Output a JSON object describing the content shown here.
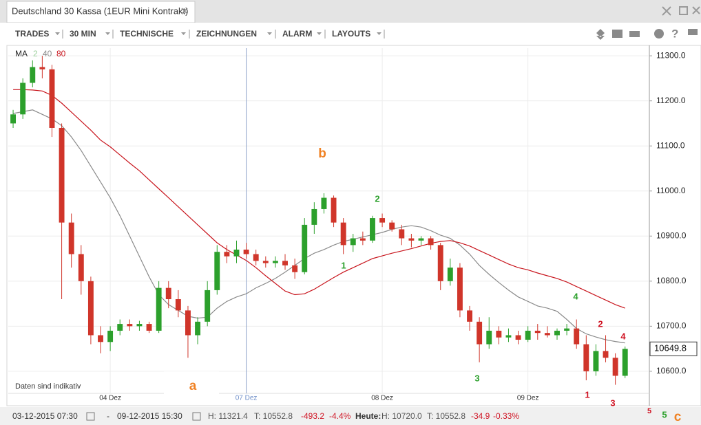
{
  "window": {
    "title": "Deutschland 30 Kassa (1EUR Mini Kontrakt)"
  },
  "toolbar": {
    "items": [
      "TRADES",
      "30 MIN",
      "TECHNISCHE",
      "ZEICHNUNGEN",
      "ALARM",
      "LAYOUTS"
    ]
  },
  "status": {
    "start": "03-12-2015 07:30",
    "dash": "-",
    "end": "09-12-2015 15:30",
    "high": "H: 11321.4",
    "low": "T: 10552.8",
    "change": "-493.2",
    "change_pct": "-4.4%",
    "today": "Heute:",
    "today_high": "H: 10720.0",
    "today_low": "T: 10552.8",
    "today_change": "-34.9",
    "today_change_pct": "-0.33%"
  },
  "chart_data": {
    "type": "candlestick",
    "categories": [
      null,
      null,
      null,
      null,
      null,
      null,
      null,
      null,
      null,
      null,
      "04 Dez",
      null,
      null,
      null,
      null,
      null,
      null,
      null,
      null,
      null,
      null,
      null,
      null,
      null,
      "07 Dez",
      null,
      null,
      null,
      null,
      null,
      null,
      null,
      null,
      null,
      null,
      null,
      null,
      null,
      "08 Dez",
      null,
      null,
      null,
      null,
      null,
      null,
      null,
      null,
      null,
      null,
      null,
      null,
      null,
      null,
      "09 Dez",
      null,
      null,
      null,
      null,
      null,
      null,
      null,
      null,
      null,
      null,
      null,
      null
    ],
    "open": [
      11150,
      11170,
      11240,
      11275,
      11270,
      11140,
      10930,
      10860,
      10800,
      10680,
      10665,
      10690,
      10705,
      10700,
      10705,
      10690,
      10785,
      10760,
      10735,
      10680,
      10710,
      10780,
      10865,
      10855,
      10870,
      10860,
      10845,
      10840,
      10845,
      10835,
      10820,
      10925,
      10960,
      10985,
      10930,
      10880,
      10895,
      10890,
      10940,
      10930,
      10915,
      10895,
      10890,
      10895,
      10880,
      10800,
      10830,
      10735,
      10710,
      10660,
      10690,
      10675,
      10680,
      10670,
      10690,
      10685,
      10680,
      10690,
      10695,
      10660,
      10600,
      10645,
      10630,
      10590,
      null,
      null
    ],
    "high": [
      11180,
      11250,
      11290,
      11300,
      11280,
      11150,
      10950,
      10880,
      10810,
      10700,
      10700,
      10715,
      10715,
      10712,
      10710,
      10800,
      10800,
      10780,
      10745,
      10720,
      10800,
      10880,
      10880,
      10890,
      10885,
      10870,
      10855,
      10855,
      10860,
      10850,
      10940,
      10975,
      10995,
      10990,
      10940,
      10905,
      10910,
      10945,
      10950,
      10935,
      10925,
      10905,
      10900,
      10900,
      10885,
      10850,
      10840,
      10745,
      10720,
      10720,
      10700,
      10695,
      10690,
      10700,
      10705,
      10700,
      10695,
      10705,
      10715,
      10680,
      10660,
      10680,
      10640,
      10655,
      null,
      null
    ],
    "low": [
      11140,
      11160,
      11230,
      11250,
      11120,
      10760,
      10830,
      10770,
      10660,
      10640,
      10645,
      10680,
      10690,
      10690,
      10685,
      10685,
      10740,
      10720,
      10630,
      10660,
      10700,
      10770,
      10840,
      10840,
      10850,
      10835,
      10830,
      10830,
      10825,
      10805,
      10815,
      10905,
      10950,
      10920,
      10860,
      10865,
      10880,
      10885,
      10920,
      10910,
      10880,
      10875,
      10880,
      10870,
      10780,
      10790,
      10720,
      10690,
      10620,
      10650,
      10660,
      10665,
      10660,
      10665,
      10670,
      10675,
      10670,
      10680,
      10650,
      10580,
      10590,
      10620,
      10570,
      10585,
      null,
      null
    ],
    "close": [
      11170,
      11240,
      11275,
      11270,
      11140,
      10930,
      10860,
      10800,
      10680,
      10665,
      10690,
      10705,
      10700,
      10705,
      10690,
      10785,
      10760,
      10735,
      10680,
      10710,
      10780,
      10865,
      10855,
      10870,
      10860,
      10845,
      10840,
      10845,
      10835,
      10820,
      10925,
      10960,
      10985,
      10930,
      10880,
      10895,
      10890,
      10940,
      10930,
      10915,
      10895,
      10890,
      10895,
      10880,
      10800,
      10830,
      10735,
      10710,
      10660,
      10690,
      10675,
      10680,
      10670,
      10690,
      10685,
      10680,
      10690,
      10695,
      10660,
      10600,
      10645,
      10630,
      10590,
      10649.8,
      null,
      null
    ],
    "up_color": "#2ca02c",
    "down_color": "#d0352a",
    "series": [
      {
        "name": "40",
        "color": "#8a8a8a",
        "values": [
          11172,
          11176,
          11180,
          11170,
          11160,
          11145,
          11120,
          11090,
          11055,
          11020,
          10985,
          10945,
          10900,
          10855,
          10810,
          10770,
          10748,
          10735,
          10722,
          10718,
          10720,
          10740,
          10755,
          10765,
          10772,
          10785,
          10795,
          10806,
          10820,
          10835,
          10850,
          10862,
          10870,
          10880,
          10888,
          10893,
          10898,
          10903,
          10908,
          10915,
          10920,
          10923,
          10920,
          10912,
          10902,
          10895,
          10880,
          10860,
          10835,
          10815,
          10797,
          10780,
          10765,
          10755,
          10745,
          10740,
          10733,
          10715,
          10695,
          10683,
          10676,
          10670,
          10666,
          10663,
          null,
          null
        ]
      },
      {
        "name": "80",
        "color": "#c8141c",
        "values": [
          11225,
          11225,
          11224,
          11222,
          11212,
          11195,
          11175,
          11155,
          11135,
          11113,
          11098,
          11080,
          11062,
          11045,
          11025,
          11005,
          10985,
          10965,
          10945,
          10925,
          10905,
          10885,
          10870,
          10858,
          10846,
          10830,
          10812,
          10795,
          10778,
          10770,
          10772,
          10782,
          10795,
          10808,
          10820,
          10830,
          10840,
          10850,
          10856,
          10862,
          10867,
          10872,
          10878,
          10884,
          10888,
          10890,
          10885,
          10878,
          10868,
          10858,
          10848,
          10838,
          10830,
          10825,
          10818,
          10812,
          10806,
          10798,
          10788,
          10778,
          10768,
          10758,
          10748,
          10740,
          null,
          null
        ]
      }
    ],
    "ylim": [
      10551,
      11317
    ],
    "yticks": [
      {
        "value": 10600,
        "label": "10600.0"
      },
      {
        "value": 10700,
        "label": "10700.0"
      },
      {
        "value": 10800,
        "label": "10800.0"
      },
      {
        "value": 10900,
        "label": "10900.0"
      },
      {
        "value": 11000,
        "label": "11000.0"
      },
      {
        "value": 11100,
        "label": "11100.0"
      },
      {
        "value": 11200,
        "label": "11200.0"
      },
      {
        "value": 11300,
        "label": "11300.0"
      }
    ],
    "grid": true,
    "ma_label": "MA",
    "ma_extra": "2",
    "note": "Daten sind indikativ",
    "annotations": [
      {
        "text": "b",
        "color": "#f08224"
      },
      {
        "text": "a",
        "color": "#f08224"
      },
      {
        "text": "c",
        "color": "#f08224"
      },
      {
        "text": "1",
        "color": "#2ca02c"
      },
      {
        "text": "2",
        "color": "#2ca02c"
      },
      {
        "text": "3",
        "color": "#2ca02c"
      },
      {
        "text": "4",
        "color": "#2ca02c"
      },
      {
        "text": "5",
        "color": "#2ca02c"
      },
      {
        "text": "1",
        "color": "#d01424"
      },
      {
        "text": "2",
        "color": "#d01424"
      },
      {
        "text": "3",
        "color": "#d01424"
      },
      {
        "text": "4",
        "color": "#d01424"
      },
      {
        "text": "5",
        "color": "#d01424"
      }
    ]
  }
}
